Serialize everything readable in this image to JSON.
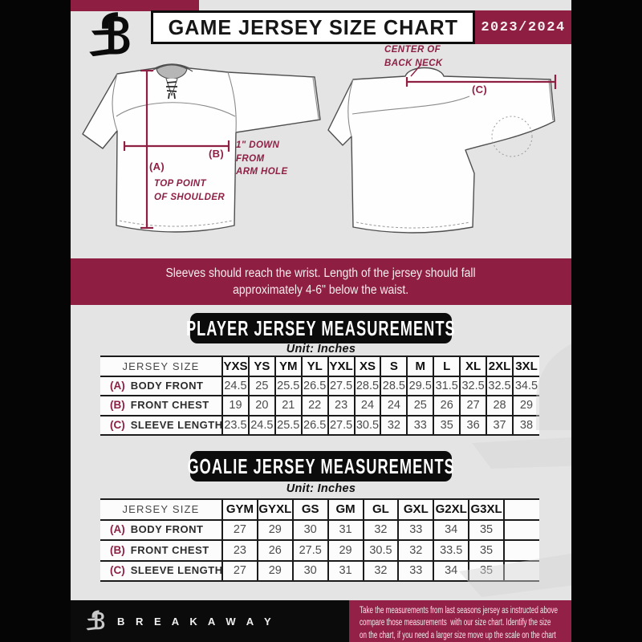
{
  "header": {
    "title": "GAME JERSEY SIZE CHART",
    "season": "2023/2024"
  },
  "diagram": {
    "front": {
      "label_a": "(A)",
      "label_b": "(B)",
      "note_a": "TOP POINT\nOF SHOULDER",
      "note_b": "1\" DOWN\nFROM\nARM HOLE"
    },
    "back": {
      "label_c": "(C)",
      "note_c": "CENTER OF\nBACK NECK"
    }
  },
  "banner": {
    "line1": "Sleeves should reach the wrist. Length of the jersey should fall",
    "line2": "approximately 4-6\" below the waist."
  },
  "player_section": {
    "title": "PLAYER JERSEY MEASUREMENTS",
    "unit": "Unit: Inches",
    "table": {
      "header": "JERSEY SIZE",
      "sizes": [
        "YXS",
        "YS",
        "YM",
        "YL",
        "YXL",
        "XS",
        "S",
        "M",
        "L",
        "XL",
        "2XL",
        "3XL"
      ],
      "rows": [
        {
          "key": "(A)",
          "label": "BODY FRONT",
          "values": [
            "24.5",
            "25",
            "25.5",
            "26.5",
            "27.5",
            "28.5",
            "28.5",
            "29.5",
            "31.5",
            "32.5",
            "32.5",
            "34.5"
          ]
        },
        {
          "key": "(B)",
          "label": "FRONT CHEST",
          "values": [
            "19",
            "20",
            "21",
            "22",
            "23",
            "24",
            "24",
            "25",
            "26",
            "27",
            "28",
            "29"
          ]
        },
        {
          "key": "(C)",
          "label": "SLEEVE LENGTH",
          "values": [
            "23.5",
            "24.5",
            "25.5",
            "26.5",
            "27.5",
            "30.5",
            "32",
            "33",
            "35",
            "36",
            "37",
            "38"
          ]
        }
      ]
    }
  },
  "goalie_section": {
    "title": "GOALIE JERSEY MEASUREMENTS",
    "unit": "Unit: Inches",
    "table": {
      "header": "JERSEY SIZE",
      "sizes": [
        "GYM",
        "GYXL",
        "GS",
        "GM",
        "GL",
        "GXL",
        "G2XL",
        "G3XL",
        ""
      ],
      "rows": [
        {
          "key": "(A)",
          "label": "BODY FRONT",
          "values": [
            "27",
            "29",
            "30",
            "31",
            "32",
            "33",
            "34",
            "35",
            ""
          ]
        },
        {
          "key": "(B)",
          "label": "FRONT CHEST",
          "values": [
            "23",
            "26",
            "27.5",
            "29",
            "30.5",
            "32",
            "33.5",
            "35",
            ""
          ]
        },
        {
          "key": "(C)",
          "label": "SLEEVE LENGTH",
          "values": [
            "27",
            "29",
            "30",
            "31",
            "32",
            "33",
            "34",
            "35",
            ""
          ]
        }
      ]
    }
  },
  "footer": {
    "brand": "B R E A K A W A Y",
    "note_line1": "Take the measurements from last seasons jersey as instructed above",
    "note_line2": "compare those measurements  with our size chart. Identify the size",
    "note_line3": "on the chart, if you need a larger size move up the scale on the chart"
  },
  "colors": {
    "maroon": "#8e1f42",
    "black": "#0b0b0b",
    "background_gray": "#e4e4e4"
  }
}
